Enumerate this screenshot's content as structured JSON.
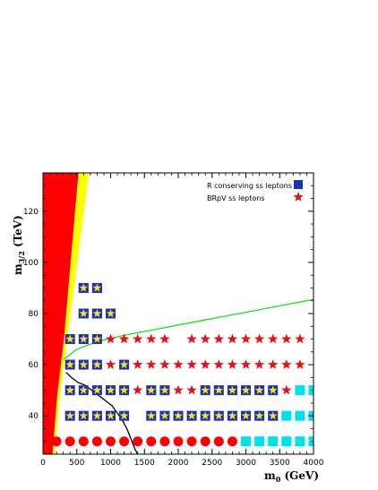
{
  "chart_data": {
    "type": "scatter",
    "xlim": [
      0,
      4000
    ],
    "ylim": [
      25,
      135
    ],
    "x_ticks": [
      0,
      500,
      1000,
      1500,
      2000,
      2500,
      3000,
      3500,
      4000
    ],
    "x_tick_labels": [
      "0",
      "500",
      "1000",
      "1500",
      "2000",
      "2500",
      "3000",
      "3500",
      "4000"
    ],
    "y_ticks": [
      40,
      60,
      80,
      100,
      120
    ],
    "y_tick_labels": [
      "40",
      "60",
      "80",
      "100",
      "120"
    ],
    "xlabel": {
      "main": "m",
      "sub": "0",
      "unit": " (GeV)"
    },
    "ylabel": {
      "main": "m",
      "sub": "3/2",
      "unit": " (TeV)"
    },
    "legend": {
      "position": "top-right",
      "entries": [
        {
          "label": "R conserving ss leptons",
          "marker": "square",
          "color": "#1a33b5"
        },
        {
          "label": "BRpV ss leptons",
          "marker": "star",
          "color": "#e0141e"
        }
      ]
    },
    "colors": {
      "excluded": "#ff0000",
      "band": "#ffff00",
      "square": "#1a33b5",
      "star": "#e0141e",
      "star_on_square": "#ffe020",
      "circle": "#ff0000",
      "cyan_square": "#00e0e8",
      "green_curve": "#22dd22",
      "black_curve": "#000000"
    },
    "regions": {
      "red_excluded_polygon": [
        [
          0,
          25
        ],
        [
          0,
          135
        ],
        [
          525,
          135
        ],
        [
          310,
          70
        ],
        [
          210,
          48
        ],
        [
          140,
          25
        ]
      ],
      "yellow_band_polygon": [
        [
          140,
          25
        ],
        [
          210,
          48
        ],
        [
          310,
          70
        ],
        [
          525,
          135
        ],
        [
          680,
          135
        ],
        [
          360,
          70
        ],
        [
          250,
          48
        ],
        [
          175,
          25
        ]
      ]
    },
    "series": [
      {
        "name": "R conserving ss leptons",
        "marker": "square",
        "points": [
          [
            600,
            90
          ],
          [
            800,
            90
          ],
          [
            600,
            80
          ],
          [
            800,
            80
          ],
          [
            1000,
            80
          ]
        ]
      },
      {
        "name": "BRpV ss leptons",
        "marker": "star",
        "points": [
          [
            1000,
            70
          ],
          [
            1200,
            70
          ],
          [
            1400,
            70
          ],
          [
            1600,
            70
          ],
          [
            1800,
            70
          ],
          [
            2200,
            70
          ],
          [
            2400,
            70
          ],
          [
            2600,
            70
          ],
          [
            2800,
            70
          ],
          [
            3000,
            70
          ],
          [
            3200,
            70
          ],
          [
            3400,
            70
          ],
          [
            3600,
            70
          ],
          [
            3800,
            70
          ],
          [
            1000,
            60
          ],
          [
            1400,
            60
          ],
          [
            1600,
            60
          ],
          [
            1800,
            60
          ],
          [
            2000,
            60
          ],
          [
            2200,
            60
          ],
          [
            2400,
            60
          ],
          [
            2600,
            60
          ],
          [
            2800,
            60
          ],
          [
            3000,
            60
          ],
          [
            3200,
            60
          ],
          [
            3400,
            60
          ],
          [
            3600,
            60
          ],
          [
            3800,
            60
          ],
          [
            1400,
            50
          ],
          [
            2000,
            50
          ],
          [
            2200,
            50
          ],
          [
            3600,
            50
          ]
        ]
      },
      {
        "name": "both",
        "marker": "star-on-square",
        "points": [
          [
            600,
            90
          ],
          [
            800,
            90
          ],
          [
            600,
            80
          ],
          [
            800,
            80
          ],
          [
            1000,
            80
          ],
          [
            400,
            70
          ],
          [
            600,
            70
          ],
          [
            800,
            70
          ],
          [
            400,
            60
          ],
          [
            600,
            60
          ],
          [
            800,
            60
          ],
          [
            1200,
            60
          ],
          [
            400,
            50
          ],
          [
            600,
            50
          ],
          [
            800,
            50
          ],
          [
            1000,
            50
          ],
          [
            1200,
            50
          ],
          [
            1600,
            50
          ],
          [
            1800,
            50
          ],
          [
            2400,
            50
          ],
          [
            2600,
            50
          ],
          [
            2800,
            50
          ],
          [
            3000,
            50
          ],
          [
            3200,
            50
          ],
          [
            3400,
            50
          ],
          [
            400,
            40
          ],
          [
            600,
            40
          ],
          [
            800,
            40
          ],
          [
            1000,
            40
          ],
          [
            1200,
            40
          ],
          [
            1600,
            40
          ],
          [
            1800,
            40
          ],
          [
            2000,
            40
          ],
          [
            2200,
            40
          ],
          [
            2400,
            40
          ],
          [
            2600,
            40
          ],
          [
            2800,
            40
          ],
          [
            3000,
            40
          ],
          [
            3200,
            40
          ],
          [
            3400,
            40
          ]
        ]
      },
      {
        "name": "circles",
        "marker": "circle",
        "points": [
          [
            200,
            30
          ],
          [
            400,
            30
          ],
          [
            600,
            30
          ],
          [
            800,
            30
          ],
          [
            1000,
            30
          ],
          [
            1200,
            30
          ],
          [
            1400,
            30
          ],
          [
            1600,
            30
          ],
          [
            1800,
            30
          ],
          [
            2000,
            30
          ],
          [
            2200,
            30
          ],
          [
            2400,
            30
          ],
          [
            2600,
            30
          ],
          [
            2800,
            30
          ]
        ]
      },
      {
        "name": "cyan",
        "marker": "cyan-square",
        "points": [
          [
            3000,
            30
          ],
          [
            3200,
            30
          ],
          [
            3400,
            30
          ],
          [
            3600,
            30
          ],
          [
            3800,
            30
          ],
          [
            4000,
            30
          ],
          [
            3600,
            40
          ],
          [
            3800,
            40
          ],
          [
            4000,
            40
          ],
          [
            3800,
            50
          ],
          [
            4000,
            50
          ]
        ]
      }
    ],
    "curves": [
      {
        "color": "green",
        "points": [
          [
            300,
            62
          ],
          [
            500,
            66
          ],
          [
            800,
            69
          ],
          [
            1200,
            71.5
          ],
          [
            1600,
            73.5
          ],
          [
            2000,
            75.5
          ],
          [
            2500,
            78
          ],
          [
            3000,
            80.5
          ],
          [
            3500,
            83
          ],
          [
            4000,
            85.5
          ]
        ]
      },
      {
        "color": "black",
        "points": [
          [
            340,
            57
          ],
          [
            420,
            55
          ],
          [
            520,
            53
          ],
          [
            620,
            52
          ],
          [
            720,
            50
          ],
          [
            820,
            48
          ],
          [
            920,
            46
          ],
          [
            1020,
            44
          ],
          [
            1100,
            41
          ],
          [
            1180,
            38
          ],
          [
            1240,
            35
          ],
          [
            1300,
            31
          ],
          [
            1360,
            27
          ],
          [
            1400,
            25
          ]
        ]
      }
    ]
  }
}
